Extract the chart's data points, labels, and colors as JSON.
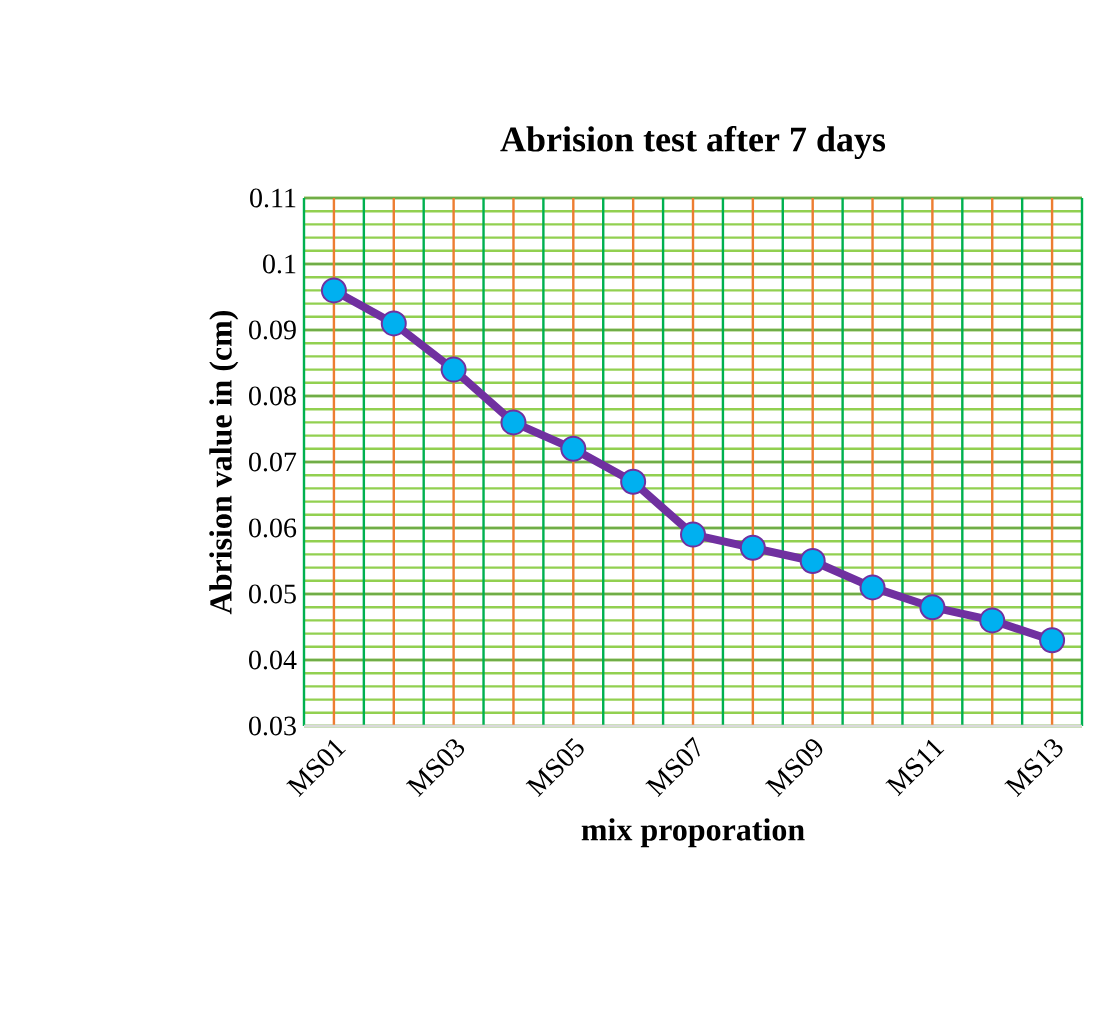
{
  "chart_data": {
    "type": "line",
    "title": "Abrision test after 7 days",
    "xlabel": "mix proporation",
    "ylabel": "Abrision value in (cm)",
    "categories": [
      "MS01",
      null,
      "MS03",
      null,
      "MS05",
      null,
      "MS07",
      null,
      "MS09",
      null,
      "MS11",
      null,
      "MS13"
    ],
    "series": [
      {
        "color": "#7030a0",
        "values": [
          0.096,
          0.091,
          0.084,
          0.076,
          0.072,
          0.067,
          0.059,
          0.057,
          0.055,
          0.051,
          0.048,
          0.046,
          0.043
        ]
      }
    ],
    "marker": "circle",
    "line_style": "solid",
    "grid": true,
    "ylim": [
      0.03,
      0.11
    ],
    "yticks": [
      0.03,
      0.04,
      0.05,
      0.06,
      0.07,
      0.08,
      0.09,
      0.1,
      0.11
    ]
  }
}
